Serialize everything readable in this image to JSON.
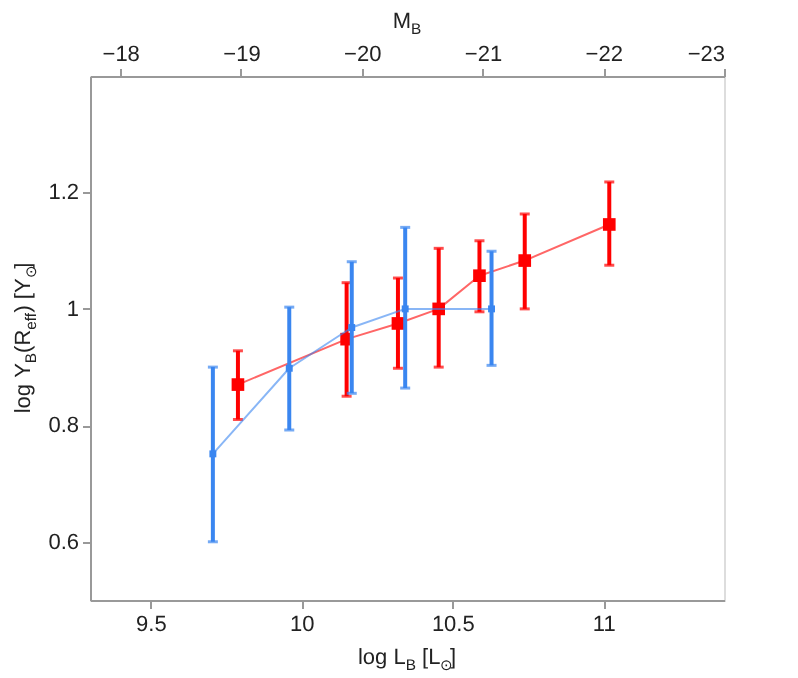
{
  "chart_data": {
    "type": "line",
    "xlabel": "log L$_{B}$ [L$_{⊙}$]",
    "ylabel": "log Υ$_{B}$(R$_{eff}$) [Υ$_{⊙}$]",
    "x2label": "M$_{B}$",
    "xlim": [
      9.3,
      11.4
    ],
    "xticks": [
      9.5,
      10,
      10.5,
      11
    ],
    "ylim": [
      0.5,
      1.4
    ],
    "yticks": [
      0.6,
      0.8,
      1,
      1.2
    ],
    "x2lim": [
      -17.75,
      -23.0
    ],
    "x2ticks": [
      -18,
      -19,
      -20,
      -21,
      -22,
      -23
    ],
    "marker": "square",
    "grid": false,
    "series": [
      {
        "color": "#ff0000",
        "x": [
          9.79,
          10.15,
          10.32,
          10.455,
          10.59,
          10.74,
          11.02
        ],
        "values": [
          0.87,
          0.948,
          0.975,
          1.0,
          1.057,
          1.083,
          1.145
        ],
        "errors": [
          [
            0.81,
            0.928
          ],
          [
            0.85,
            1.045
          ],
          [
            0.898,
            1.053
          ],
          [
            0.9,
            1.104
          ],
          [
            0.995,
            1.117
          ],
          [
            1.0,
            1.163
          ],
          [
            1.075,
            1.218
          ]
        ]
      },
      {
        "color": "#3a86f0",
        "x": [
          9.707,
          9.96,
          10.167,
          10.344,
          10.63
        ],
        "values": [
          0.751,
          0.898,
          0.968,
          1.0,
          1.0
        ],
        "errors": [
          [
            0.6,
            0.9
          ],
          [
            0.792,
            1.003
          ],
          [
            0.855,
            1.081
          ],
          [
            0.864,
            1.14
          ],
          [
            0.903,
            1.099
          ]
        ]
      }
    ]
  }
}
